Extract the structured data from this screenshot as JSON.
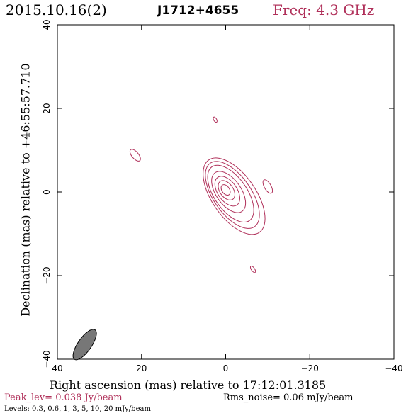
{
  "header": {
    "date": "2015.10.16(2)",
    "source": "J1712+4655",
    "freq": "Freq: 4.3 GHz"
  },
  "colors": {
    "contour": "#b0305a",
    "beam": "#777777",
    "frame": "#000000"
  },
  "footer": {
    "peak": "Peak_lev=  0.038 Jy/beam",
    "rms": "Rms_noise= 0.06 mJy/beam",
    "levels": "Levels: 0.3, 0.6,    1,    3,    5,   10,   20 mJy/beam"
  },
  "chart_data": {
    "type": "contour",
    "xlabel": "Right ascension (mas) relative to 17:12:01.3185",
    "ylabel": "Declination (mas) relative to +46:55:57.710",
    "xlim": [
      40,
      -40
    ],
    "ylim": [
      -40,
      40
    ],
    "xticks": [
      40,
      20,
      0,
      -20,
      -40
    ],
    "yticks": [
      -40,
      -20,
      0,
      20,
      40
    ],
    "xtick_labels": [
      "40",
      "20",
      "0",
      "−20",
      "−40"
    ],
    "ytick_labels": [
      "−40",
      "−20",
      "0",
      "20",
      "40"
    ],
    "levels_mJy": [
      0.3,
      0.6,
      1,
      3,
      5,
      10,
      20
    ],
    "core": {
      "center": [
        0,
        0.5
      ],
      "pa_deg": -55,
      "contours": [
        {
          "level": 0.3,
          "rx": 10.5,
          "ry": 5.2,
          "dx": -2.0,
          "dy": -1.5
        },
        {
          "level": 0.6,
          "rx": 9.2,
          "ry": 4.5,
          "dx": -1.6,
          "dy": -1.2
        },
        {
          "level": 1,
          "rx": 7.8,
          "ry": 3.9,
          "dx": -1.2,
          "dy": -0.9
        },
        {
          "level": 3,
          "rx": 5.6,
          "ry": 3.0,
          "dx": -0.7,
          "dy": -0.5
        },
        {
          "level": 5,
          "rx": 4.0,
          "ry": 2.3,
          "dx": -0.4,
          "dy": -0.3
        },
        {
          "level": 10,
          "rx": 2.6,
          "ry": 1.6,
          "dx": -0.2,
          "dy": -0.1
        },
        {
          "level": 20,
          "rx": 1.4,
          "ry": 0.9,
          "dx": 0,
          "dy": 0
        }
      ]
    },
    "blobs": [
      {
        "x": 21.5,
        "y": 8.8,
        "rx": 1.7,
        "ry": 0.8,
        "pa_deg": -50
      },
      {
        "x": 2.5,
        "y": 17.3,
        "rx": 0.7,
        "ry": 0.35,
        "pa_deg": -60
      },
      {
        "x": -10.0,
        "y": 1.3,
        "rx": 1.8,
        "ry": 0.8,
        "pa_deg": -60
      },
      {
        "x": -6.5,
        "y": -18.5,
        "rx": 0.9,
        "ry": 0.4,
        "pa_deg": -55
      }
    ],
    "beam": {
      "x": 33.5,
      "y": -36.5,
      "major": 4.3,
      "minor": 1.6,
      "pa_deg": -35
    }
  }
}
